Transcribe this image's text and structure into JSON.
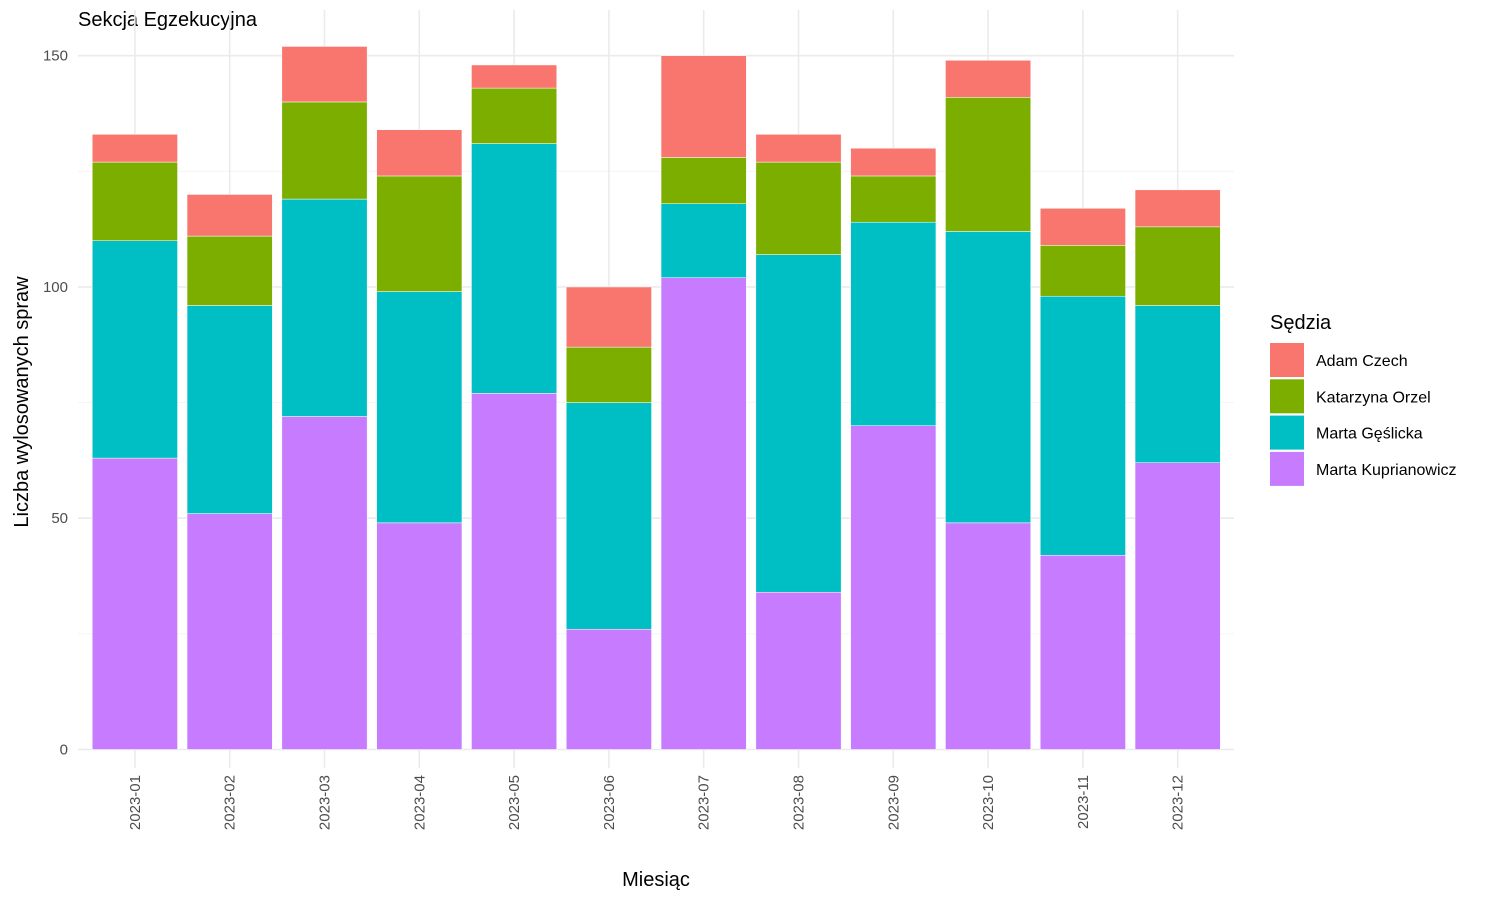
{
  "chart_data": {
    "type": "bar",
    "stacked": true,
    "title": "Sekcja Egzekucyjna",
    "xlabel": "Miesiąc",
    "ylabel": "Liczba wylosowanych spraw",
    "ylim": [
      0,
      158
    ],
    "yticks": [
      0,
      50,
      100,
      150
    ],
    "grid": true,
    "legend": {
      "title": "Sędzia",
      "position": "right"
    },
    "categories": [
      "2023-01",
      "2023-02",
      "2023-03",
      "2023-04",
      "2023-05",
      "2023-06",
      "2023-07",
      "2023-08",
      "2023-09",
      "2023-10",
      "2023-11",
      "2023-12"
    ],
    "series": [
      {
        "name": "Marta Kuprianowicz",
        "color": "#C77CFF",
        "values": [
          63,
          51,
          72,
          49,
          77,
          26,
          102,
          34,
          70,
          49,
          42,
          62
        ]
      },
      {
        "name": "Marta Gęślicka",
        "color": "#00BFC4",
        "values": [
          47,
          45,
          47,
          50,
          54,
          49,
          16,
          73,
          44,
          63,
          56,
          34
        ]
      },
      {
        "name": "Katarzyna Orzel",
        "color": "#7CAE00",
        "values": [
          17,
          15,
          21,
          25,
          12,
          12,
          10,
          20,
          10,
          29,
          11,
          17
        ]
      },
      {
        "name": "Adam Czech",
        "color": "#F8766D",
        "values": [
          6,
          9,
          12,
          10,
          5,
          13,
          22,
          6,
          6,
          8,
          8,
          8
        ]
      }
    ],
    "legend_order": [
      "Adam Czech",
      "Katarzyna Orzel",
      "Marta Gęślicka",
      "Marta Kuprianowicz"
    ]
  }
}
